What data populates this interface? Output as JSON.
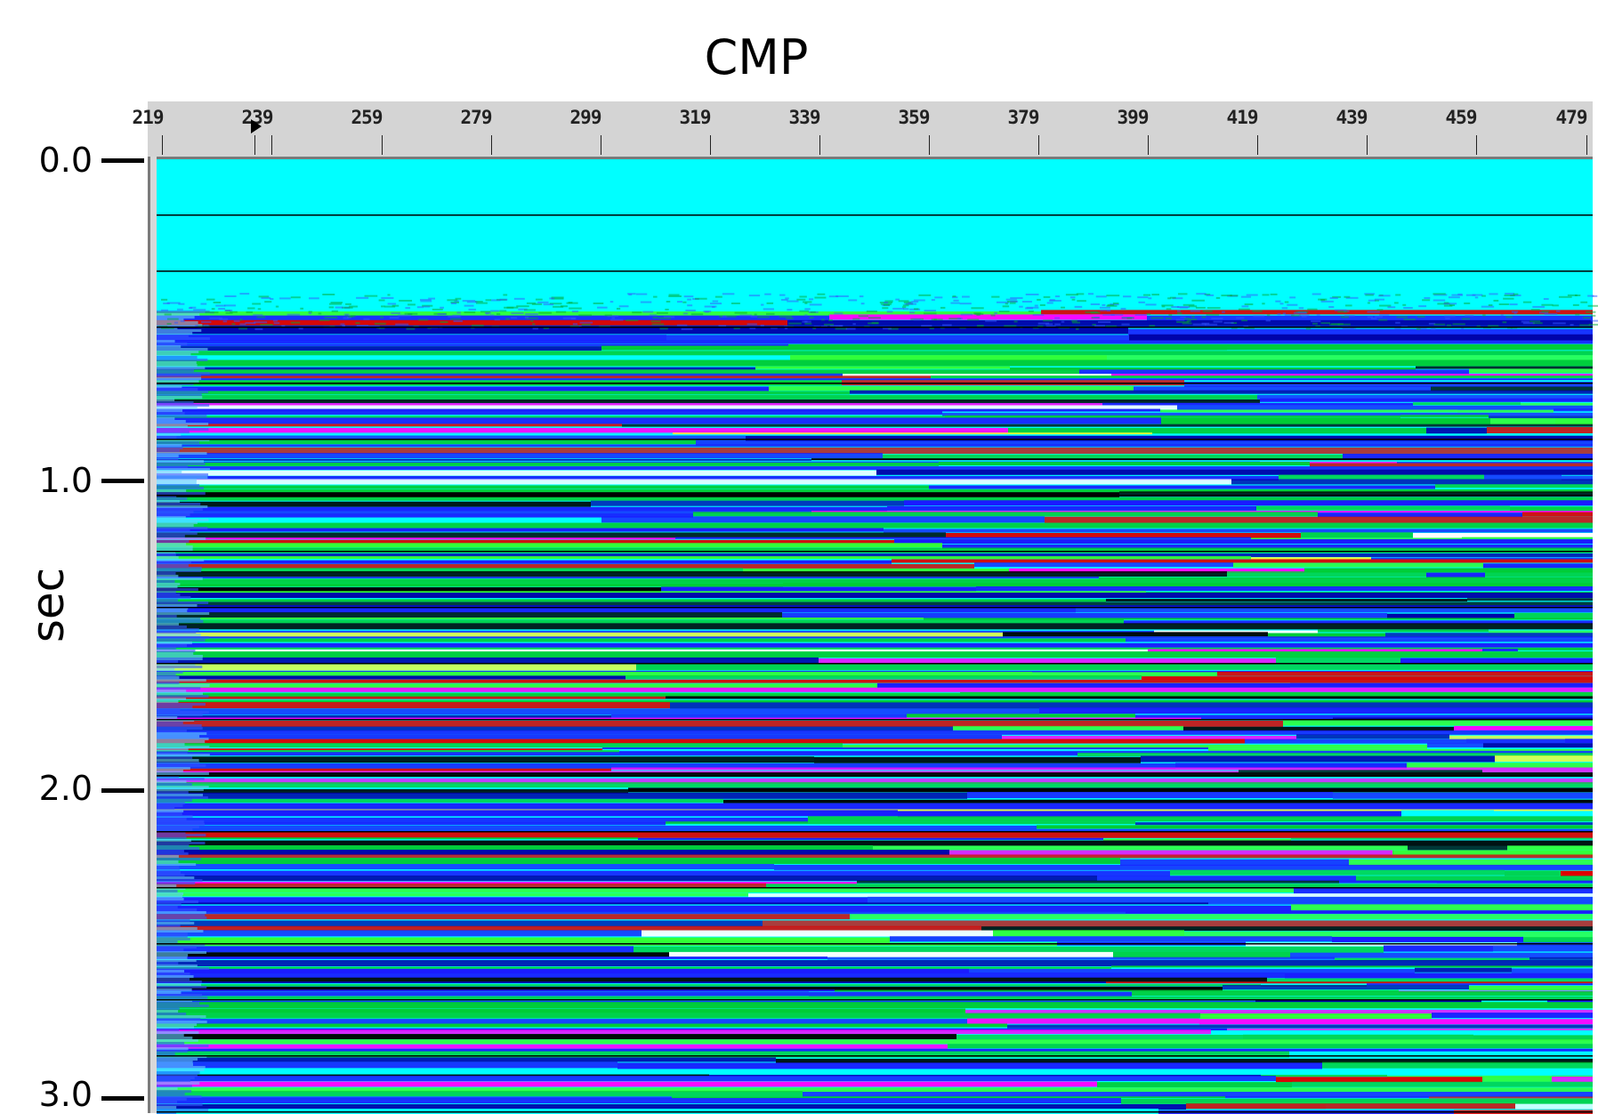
{
  "title": "CMP",
  "y_axis": {
    "label": "sec",
    "ticks": [
      "0.0",
      "1.0",
      "2.0",
      "3.0"
    ]
  },
  "cmp_ruler": {
    "labels": [
      "219",
      "239",
      "259",
      "279",
      "299",
      "319",
      "339",
      "359",
      "379",
      "399",
      "419",
      "439",
      "459",
      "479"
    ]
  },
  "colors": {
    "background_water": "#00ffff",
    "ruler": "#d4d4d4",
    "reflector_palette": [
      "#000000",
      "#1a1aff",
      "#0000aa",
      "#00cc33",
      "#33ff33",
      "#ff00ff",
      "#dd0000",
      "#ffff33",
      "#ffffff",
      "#00ffff"
    ]
  },
  "display": {
    "colormap": "seismic variable-density",
    "time_gridlines": true,
    "seafloor_time_sec": 0.5
  }
}
